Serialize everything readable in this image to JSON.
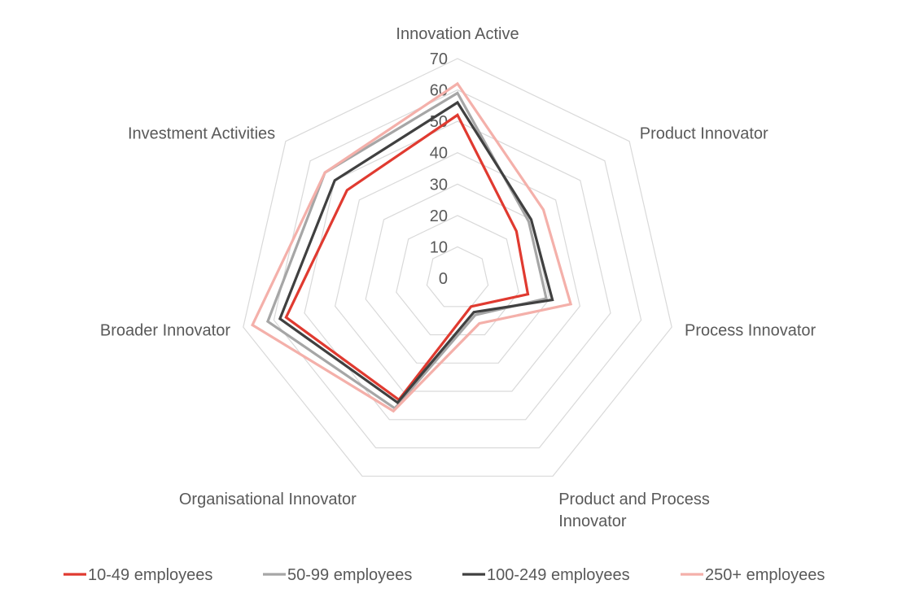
{
  "chart_data": {
    "type": "radar",
    "title": "",
    "categories": [
      "Innovation Active",
      "Product Innovator",
      "Process Innovator",
      "Product and Process Innovator",
      "Organisational Innovator",
      "Broader Innovator",
      "Investment Activities"
    ],
    "category_lines": [
      [
        "Innovation Active"
      ],
      [
        "Product Innovator"
      ],
      [
        "Process Innovator"
      ],
      [
        "Product and Process",
        "Innovator"
      ],
      [
        "Organisational Innovator"
      ],
      [
        "Broader Innovator"
      ],
      [
        "Investment Activities"
      ]
    ],
    "r_ticks": [
      0,
      10,
      20,
      30,
      40,
      50,
      60,
      70
    ],
    "r_range": [
      0,
      70
    ],
    "grid": true,
    "legend_position": "bottom",
    "series": [
      {
        "name": "10-49 employees",
        "color": "#e03a30",
        "values": [
          52,
          24,
          23,
          10,
          43,
          56,
          45
        ]
      },
      {
        "name": "50-99 employees",
        "color": "#a6a6a6",
        "values": [
          59,
          29,
          29,
          13,
          46,
          62,
          54
        ]
      },
      {
        "name": "100-249 employees",
        "color": "#404040",
        "values": [
          56,
          30,
          31,
          12,
          44,
          58,
          50
        ]
      },
      {
        "name": "250+ employees",
        "color": "#f4b0aa",
        "values": [
          62,
          35,
          37,
          16,
          47,
          67,
          54
        ]
      }
    ]
  },
  "colors": {
    "grid": "#d9d9d9",
    "text": "#595959"
  }
}
